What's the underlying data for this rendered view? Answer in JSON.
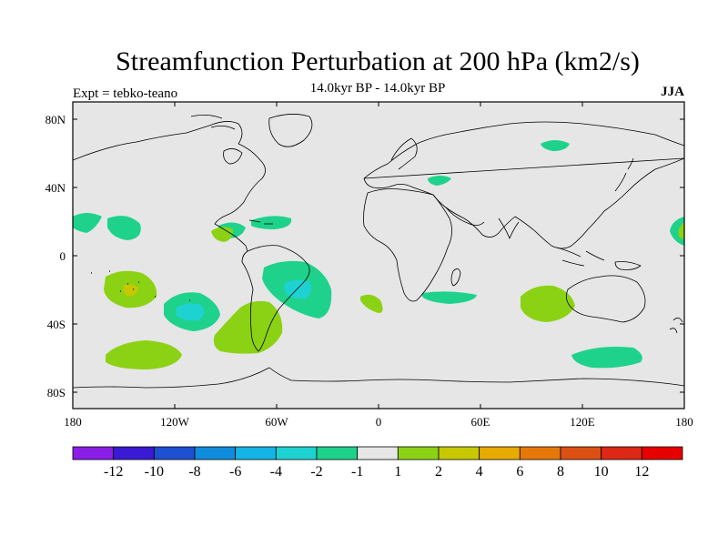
{
  "header": {
    "title": "Streamfunction Perturbation at 200 hPa (km2/s)",
    "expt": "Expt = tebko-teano",
    "subtitle": "14.0kyr BP - 14.0kyr BP",
    "season": "JJA"
  },
  "map": {
    "background_color": "#e6e6e6",
    "lon_ticks": [
      "180",
      "120W",
      "60W",
      "0",
      "60E",
      "120E",
      "180"
    ],
    "lat_ticks": [
      "80N",
      "40N",
      "0",
      "40S",
      "80S"
    ]
  },
  "colorbar": {
    "colors": [
      "#8a1ee6",
      "#3a1ad2",
      "#1e50d2",
      "#0f8cdc",
      "#14b4e6",
      "#1ed2d2",
      "#1ed28c",
      "#e6e6e6",
      "#8cd214",
      "#c8c800",
      "#e6aa00",
      "#e6780a",
      "#dc5014",
      "#dc2814",
      "#e60000"
    ],
    "labels": [
      "-12",
      "-10",
      "-8",
      "-6",
      "-4",
      "-2",
      "-1",
      "1",
      "2",
      "4",
      "6",
      "8",
      "10",
      "12"
    ]
  },
  "anomalies": [
    {
      "region": "south-pacific-positive",
      "level": "2"
    },
    {
      "region": "south-pacific-core",
      "level": "4"
    },
    {
      "region": "southeast-pacific-negative",
      "level": "-2"
    },
    {
      "region": "southeast-pacific-core",
      "level": "-4"
    },
    {
      "region": "south-atlantic-negative",
      "level": "-2"
    },
    {
      "region": "south-atlantic-core",
      "level": "-4"
    },
    {
      "region": "patagonia-positive",
      "level": "2"
    },
    {
      "region": "indian-ocean-positive",
      "level": "2"
    }
  ]
}
